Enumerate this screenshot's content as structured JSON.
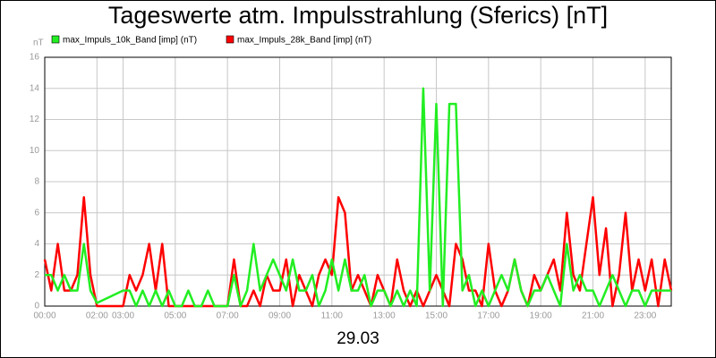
{
  "chart_data": {
    "type": "line",
    "title": "Tageswerte atm. Impulsstrahlung (Sferics) [nT]",
    "ylabel": "nT",
    "xlabel": "29.03",
    "xlim": [
      0,
      24
    ],
    "ylim": [
      0,
      16
    ],
    "xticks": [
      {
        "value": 0,
        "label": "00:00"
      },
      {
        "value": 2,
        "label": "02:00"
      },
      {
        "value": 3,
        "label": "03:00"
      },
      {
        "value": 5,
        "label": "05:00"
      },
      {
        "value": 7,
        "label": "07:00"
      },
      {
        "value": 9,
        "label": "09:00"
      },
      {
        "value": 11,
        "label": "11:00"
      },
      {
        "value": 13,
        "label": "13:00"
      },
      {
        "value": 15,
        "label": "15:00"
      },
      {
        "value": 17,
        "label": "17:00"
      },
      {
        "value": 19,
        "label": "19:00"
      },
      {
        "value": 21,
        "label": "21:00"
      },
      {
        "value": 23,
        "label": "23:00"
      }
    ],
    "yticks": [
      0,
      2,
      4,
      6,
      8,
      10,
      12,
      14,
      16
    ],
    "grid": true,
    "x": [
      0,
      0.25,
      0.5,
      0.75,
      1,
      1.25,
      1.5,
      1.75,
      2,
      2.25,
      2.5,
      2.75,
      3,
      3.25,
      3.5,
      3.75,
      4,
      4.25,
      4.5,
      4.75,
      5,
      5.25,
      5.5,
      5.75,
      6,
      6.25,
      6.5,
      6.75,
      7,
      7.25,
      7.5,
      7.75,
      8,
      8.25,
      8.5,
      8.75,
      9,
      9.25,
      9.5,
      9.75,
      10,
      10.25,
      10.5,
      10.75,
      11,
      11.25,
      11.5,
      11.75,
      12,
      12.25,
      12.5,
      12.75,
      13,
      13.25,
      13.5,
      13.75,
      14,
      14.25,
      14.5,
      14.75,
      15,
      15.25,
      15.5,
      15.75,
      16,
      16.25,
      16.5,
      16.75,
      17,
      17.25,
      17.5,
      17.75,
      18,
      18.25,
      18.5,
      18.75,
      19,
      19.25,
      19.5,
      19.75,
      20,
      20.25,
      20.5,
      20.75,
      21,
      21.25,
      21.5,
      21.75,
      22,
      22.25,
      22.5,
      22.75,
      23,
      23.25,
      23.5,
      23.75,
      24
    ],
    "series": [
      {
        "name": "max_Impuls_28k_Band [imp] (nT)",
        "color": "#ff0000",
        "values": [
          3,
          1,
          4,
          1,
          1,
          2,
          7,
          2,
          0,
          0,
          0,
          0,
          0,
          2,
          1,
          2,
          4,
          1,
          4,
          0,
          0,
          0,
          0,
          0,
          0,
          0,
          0,
          0,
          0,
          3,
          0,
          0,
          1,
          0,
          2,
          1,
          1,
          3,
          0,
          2,
          1,
          0,
          2,
          3,
          2,
          7,
          6,
          1,
          2,
          1,
          0,
          2,
          1,
          0,
          3,
          1,
          0,
          1,
          0,
          1,
          2,
          1,
          0,
          4,
          3,
          1,
          1,
          0,
          4,
          1,
          0,
          1,
          3,
          1,
          0,
          2,
          1,
          2,
          3,
          1,
          6,
          2,
          1,
          4,
          7,
          2,
          5,
          0,
          2,
          6,
          1,
          3,
          1,
          3,
          0,
          3,
          1
        ]
      },
      {
        "name": "max_Impuls_10k_Band [imp] (nT)",
        "color": "#22ee22",
        "values": [
          2,
          2,
          1,
          2,
          1,
          1,
          4,
          1,
          0.2,
          0.4,
          0.6,
          0.8,
          1,
          1,
          0,
          1,
          0,
          1,
          0,
          1,
          0,
          0,
          1,
          0,
          0,
          1,
          0,
          0,
          0,
          2,
          0,
          1,
          4,
          1,
          2,
          3,
          2,
          1,
          3,
          1,
          1,
          2,
          0,
          1,
          3,
          1,
          3,
          1,
          1,
          2,
          0,
          1,
          1,
          0,
          1,
          0,
          1,
          0,
          14,
          1,
          13,
          0,
          13,
          13,
          1,
          2,
          0,
          1,
          0,
          1,
          2,
          1,
          3,
          1,
          0,
          1,
          1,
          2,
          1,
          0,
          4,
          1,
          2,
          1,
          1,
          0,
          1,
          2,
          1,
          0,
          1,
          1,
          0,
          1,
          1,
          1,
          1
        ]
      }
    ],
    "legend": "top-left"
  }
}
